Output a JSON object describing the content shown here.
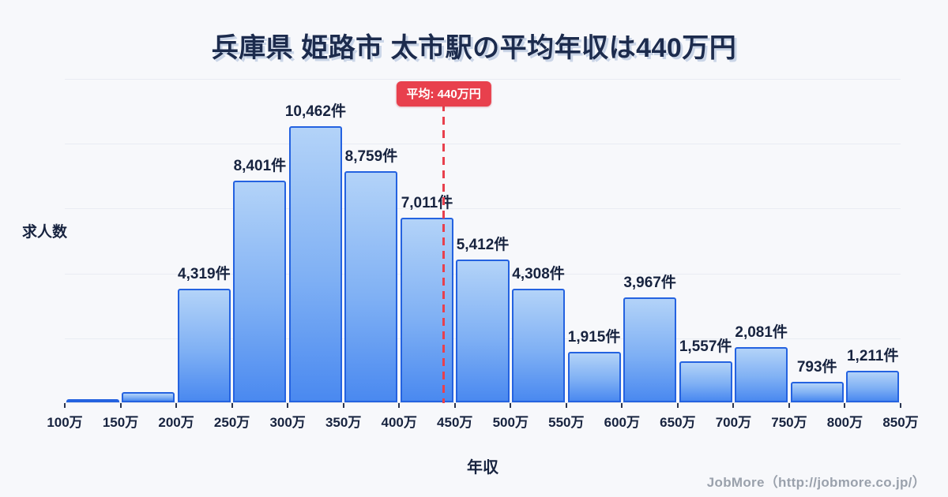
{
  "page": {
    "title": "兵庫県 姫路市 太市駅の平均年収は440万円",
    "footer_credit": "JobMore（http://jobmore.co.jp/）"
  },
  "colors": {
    "background": "#f7f8fb",
    "title_text": "#1c2b4d",
    "axis_text": "#17233f",
    "bar_border": "#2462e0",
    "bar_fill_top": "#b3d3f8",
    "bar_fill_bottom": "#4a89f0",
    "gridline": "#e9ecf3",
    "average_red": "#e8404d",
    "footer_text": "#9aa1ac"
  },
  "chart_data": {
    "type": "bar",
    "title": "兵庫県 姫路市 太市駅の平均年収は440万円",
    "xlabel": "年収",
    "ylabel": "求人数",
    "unit": "件",
    "grid": "horizontal",
    "gridline_intervals": 5,
    "ylim": [
      0,
      12300
    ],
    "x_tick_labels": [
      "100万",
      "150万",
      "200万",
      "250万",
      "300万",
      "350万",
      "400万",
      "450万",
      "500万",
      "550万",
      "600万",
      "650万",
      "700万",
      "750万",
      "800万",
      "850万"
    ],
    "bars": [
      {
        "range": "100万-150万",
        "value": 75,
        "label": ""
      },
      {
        "range": "150万-200万",
        "value": 390,
        "label": ""
      },
      {
        "range": "200万-250万",
        "value": 4319,
        "label": "4,319件"
      },
      {
        "range": "250万-300万",
        "value": 8401,
        "label": "8,401件"
      },
      {
        "range": "300万-350万",
        "value": 10462,
        "label": "10,462件"
      },
      {
        "range": "350万-400万",
        "value": 8759,
        "label": "8,759件"
      },
      {
        "range": "400万-450万",
        "value": 7011,
        "label": "7,011件"
      },
      {
        "range": "450万-500万",
        "value": 5412,
        "label": "5,412件"
      },
      {
        "range": "500万-550万",
        "value": 4308,
        "label": "4,308件"
      },
      {
        "range": "550万-600万",
        "value": 1915,
        "label": "1,915件"
      },
      {
        "range": "600万-650万",
        "value": 3967,
        "label": "3,967件"
      },
      {
        "range": "650万-700万",
        "value": 1557,
        "label": "1,557件"
      },
      {
        "range": "700万-750万",
        "value": 2081,
        "label": "2,081件"
      },
      {
        "range": "750万-800万",
        "value": 793,
        "label": "793件"
      },
      {
        "range": "800万-850万",
        "value": 1211,
        "label": "1,211件"
      }
    ],
    "average_line": {
      "value": 440,
      "unit": "万円",
      "label": "平均: 440万円",
      "x_axis_min": 100,
      "x_axis_max": 850
    }
  }
}
